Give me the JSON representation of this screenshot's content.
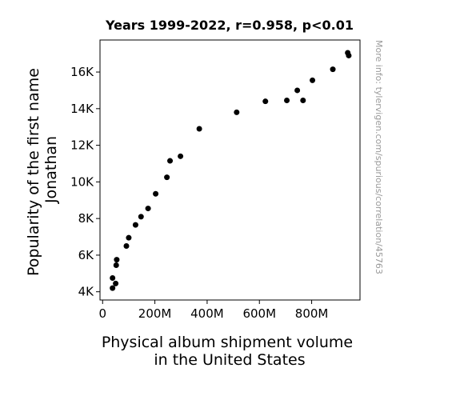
{
  "chart_data": {
    "type": "scatter",
    "title": "Years 1999-2022, r=0.958, p<0.01",
    "xlabel_lines": [
      "Physical album shipment volume",
      "in the United States"
    ],
    "ylabel_lines": [
      "Popularity of the first name",
      "Jonathan"
    ],
    "x_ticks": [
      0,
      200,
      400,
      600,
      800
    ],
    "x_tick_labels": [
      "0",
      "200M",
      "400M",
      "600M",
      "800M"
    ],
    "y_ticks": [
      4000,
      6000,
      8000,
      10000,
      12000,
      14000,
      16000
    ],
    "y_tick_labels": [
      "4K",
      "6K",
      "8K",
      "10K",
      "12K",
      "14K",
      "16K"
    ],
    "xlim": [
      -10,
      985
    ],
    "ylim": [
      3550,
      17750
    ],
    "grid": false,
    "legend": "none",
    "point_color": "#000000",
    "unit_x": "millions",
    "points": [
      {
        "x": 938,
        "y": 17050
      },
      {
        "x": 942,
        "y": 16900
      },
      {
        "x": 881,
        "y": 16150
      },
      {
        "x": 803,
        "y": 15550
      },
      {
        "x": 745,
        "y": 15000
      },
      {
        "x": 705,
        "y": 14450
      },
      {
        "x": 767,
        "y": 14450
      },
      {
        "x": 623,
        "y": 14400
      },
      {
        "x": 513,
        "y": 13800
      },
      {
        "x": 370,
        "y": 12900
      },
      {
        "x": 298,
        "y": 11400
      },
      {
        "x": 258,
        "y": 11150
      },
      {
        "x": 246,
        "y": 10250
      },
      {
        "x": 203,
        "y": 9350
      },
      {
        "x": 174,
        "y": 8550
      },
      {
        "x": 147,
        "y": 8100
      },
      {
        "x": 126,
        "y": 7650
      },
      {
        "x": 100,
        "y": 6950
      },
      {
        "x": 91,
        "y": 6500
      },
      {
        "x": 54,
        "y": 5750
      },
      {
        "x": 52,
        "y": 5450
      },
      {
        "x": 38,
        "y": 4750
      },
      {
        "x": 50,
        "y": 4450
      },
      {
        "x": 38,
        "y": 4200
      }
    ]
  },
  "watermark": "More info: tylervigen.com/spurious/correlation/45763"
}
